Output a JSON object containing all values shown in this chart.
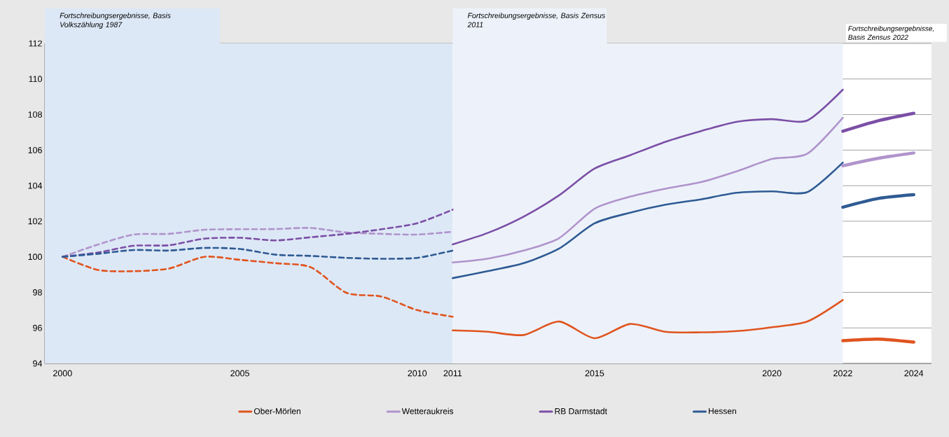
{
  "chart_data": {
    "type": "line",
    "annotations": [
      "Fortschreibungsergebnisse, Basis Zensus 2022"
    ],
    "bands": [
      {
        "axis": "x",
        "from": 1999.5,
        "to": 2011,
        "label": "Fortschreibungsergebnisse, Basis Volkszählung 1987",
        "color": "#dde8f6"
      },
      {
        "axis": "x",
        "from": 2011,
        "to": 2022,
        "label": "Fortschreibungsergebnisse, Basis Zensus 2011",
        "color": "#edf2fa"
      }
    ],
    "series": [
      {
        "color": "#e0541f",
        "line_style": "dashed",
        "x": [
          2000,
          2001,
          2002,
          2003,
          2004,
          2005,
          2006,
          2007,
          2008,
          2009,
          2010,
          2011
        ],
        "values": [
          100,
          99.26,
          99.19,
          99.34,
          100.0,
          99.83,
          99.64,
          99.41,
          97.98,
          97.76,
          97.0,
          96.63
        ]
      },
      {
        "color": "#b094cc",
        "line_style": "dashed",
        "x": [
          2000,
          2001,
          2002,
          2003,
          2004,
          2005,
          2006,
          2007,
          2008,
          2009,
          2010,
          2011
        ],
        "values": [
          100,
          100.69,
          101.25,
          101.29,
          101.52,
          101.55,
          101.56,
          101.62,
          101.37,
          101.29,
          101.25,
          101.41
        ]
      },
      {
        "color": "#7b4fa6",
        "line_style": "dashed",
        "x": [
          2000,
          2001,
          2002,
          2003,
          2004,
          2005,
          2006,
          2007,
          2008,
          2009,
          2010,
          2011
        ],
        "values": [
          100,
          100.24,
          100.62,
          100.65,
          101.02,
          101.07,
          100.92,
          101.1,
          101.29,
          101.55,
          101.89,
          102.65
        ]
      },
      {
        "color": "#2f5b94",
        "line_style": "dashed",
        "x": [
          2000,
          2001,
          2002,
          2003,
          2004,
          2005,
          2006,
          2007,
          2008,
          2009,
          2010,
          2011
        ],
        "values": [
          100,
          100.17,
          100.38,
          100.35,
          100.5,
          100.44,
          100.12,
          100.05,
          99.94,
          99.89,
          99.94,
          100.35
        ]
      },
      {
        "name": "Ober-Mörlen",
        "color": "#e0541f",
        "line_style": "solid",
        "x": [
          2011,
          2012,
          2013,
          2014,
          2015,
          2016,
          2017,
          2018,
          2019,
          2020,
          2021,
          2022
        ],
        "values": [
          95.86,
          95.78,
          95.6,
          96.36,
          95.42,
          96.22,
          95.78,
          95.75,
          95.82,
          96.04,
          96.36,
          97.57
        ]
      },
      {
        "name": "Wetteraukreis",
        "color": "#b094cc",
        "line_style": "solid",
        "x": [
          2011,
          2012,
          2013,
          2014,
          2015,
          2016,
          2017,
          2018,
          2019,
          2020,
          2021,
          2022
        ],
        "values": [
          99.68,
          99.9,
          100.35,
          101.05,
          102.7,
          103.38,
          103.83,
          104.2,
          104.8,
          105.5,
          105.8,
          107.82
        ]
      },
      {
        "name": "RB Darmstadt",
        "color": "#7b4fa6",
        "line_style": "solid",
        "x": [
          2011,
          2012,
          2013,
          2014,
          2015,
          2016,
          2017,
          2018,
          2019,
          2020,
          2021,
          2022
        ],
        "values": [
          100.7,
          101.35,
          102.26,
          103.46,
          104.96,
          105.71,
          106.47,
          107.07,
          107.59,
          107.74,
          107.67,
          109.4
        ]
      },
      {
        "name": "Hessen",
        "color": "#2f5b94",
        "line_style": "solid",
        "x": [
          2011,
          2012,
          2013,
          2014,
          2015,
          2016,
          2017,
          2018,
          2019,
          2020,
          2021,
          2022
        ],
        "values": [
          98.8,
          99.2,
          99.64,
          100.46,
          101.88,
          102.48,
          102.93,
          103.23,
          103.6,
          103.68,
          103.64,
          105.3
        ]
      },
      {
        "color": "#e0541f",
        "line_style": "solid",
        "x": [
          2022,
          2023,
          2024
        ],
        "values": [
          95.28,
          95.37,
          95.2
        ]
      },
      {
        "color": "#b094cc",
        "line_style": "solid",
        "x": [
          2022,
          2023,
          2024
        ],
        "values": [
          105.12,
          105.54,
          105.84
        ]
      },
      {
        "color": "#7b4fa6",
        "line_style": "solid",
        "x": [
          2022,
          2023,
          2024
        ],
        "values": [
          107.06,
          107.65,
          108.07
        ]
      },
      {
        "color": "#2f5b94",
        "line_style": "solid",
        "x": [
          2022,
          2023,
          2024
        ],
        "values": [
          102.79,
          103.28,
          103.49
        ]
      }
    ],
    "xlim": [
      1999.5,
      2024.5
    ],
    "xticks": [
      2000,
      2005,
      2010,
      2011,
      2015,
      2020,
      2022,
      2024
    ],
    "ylim": [
      94,
      112
    ],
    "yticks": [
      94,
      96,
      98,
      100,
      102,
      104,
      106,
      108,
      110,
      112
    ],
    "grid": "y",
    "legend": "bottom",
    "marker": "none"
  }
}
